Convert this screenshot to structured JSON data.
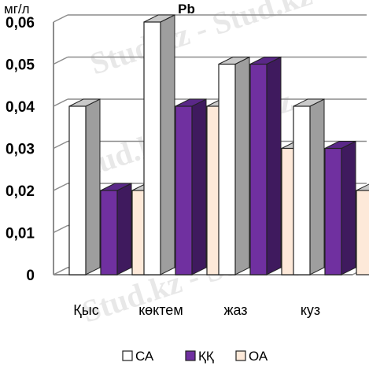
{
  "chart_data": {
    "type": "bar",
    "title": "Pb",
    "ylabel": "мг/л",
    "categories": [
      "Қыс",
      "көктем",
      "жаз",
      "куз"
    ],
    "series": [
      {
        "name": "СА",
        "values": [
          0.04,
          0.06,
          0.05,
          0.04
        ],
        "color": "#ffffff"
      },
      {
        "name": "ҚҚ",
        "values": [
          0.02,
          0.04,
          0.05,
          0.03
        ],
        "color": "#7030a0"
      },
      {
        "name": "ОА",
        "values": [
          0.02,
          0.04,
          0.03,
          0.02
        ],
        "color": "#fde9d9"
      }
    ],
    "ylim": [
      0,
      0.06
    ],
    "yticks": [
      "0",
      "0,01",
      "0,02",
      "0,03",
      "0,04",
      "0,05",
      "0,06"
    ],
    "grid": true,
    "legend": "bottom"
  },
  "watermark": "Stud.kz - Stud.kz"
}
